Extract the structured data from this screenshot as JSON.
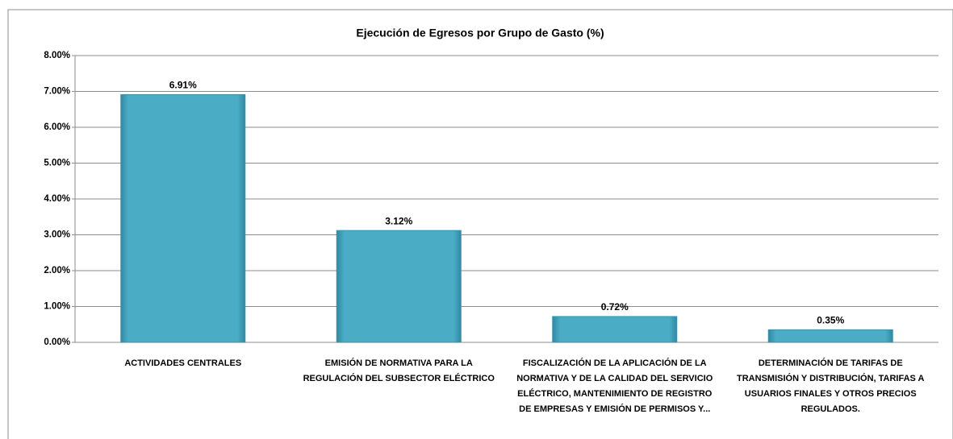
{
  "chart_data": {
    "type": "bar",
    "title": "Ejecución de Egresos por Grupo de Gasto (%)",
    "categories": [
      "ACTIVIDADES CENTRALES",
      "EMISIÓN DE NORMATIVA PARA LA\nREGULACIÓN DEL SUBSECTOR ELÉCTRICO",
      "FISCALIZACIÓN DE LA APLICACIÓN DE LA\nNORMATIVA Y DE LA CALIDAD DEL SERVICIO\nELÉCTRICO, MANTENIMIENTO DE REGISTRO\nDE EMPRESAS Y EMISIÓN DE PERMISOS Y...",
      "DETERMINACIÓN DE TARIFAS DE\nTRANSMISIÓN Y DISTRIBUCIÓN, TARIFAS A\nUSUARIOS FINALES Y OTROS PRECIOS\nREGULADOS."
    ],
    "values": [
      6.91,
      3.12,
      0.72,
      0.35
    ],
    "value_labels": [
      "6.91%",
      "3.12%",
      "0.72%",
      "0.35%"
    ],
    "color": "#4bacc6",
    "ylim": [
      0,
      8
    ],
    "yticks": [
      {
        "value": 0,
        "label": "0.00%"
      },
      {
        "value": 1,
        "label": "1.00%"
      },
      {
        "value": 2,
        "label": "2.00%"
      },
      {
        "value": 3,
        "label": "3.00%"
      },
      {
        "value": 4,
        "label": "4.00%"
      },
      {
        "value": 5,
        "label": "5.00%"
      },
      {
        "value": 6,
        "label": "6.00%"
      },
      {
        "value": 7,
        "label": "7.00%"
      },
      {
        "value": 8,
        "label": "8.00%"
      }
    ],
    "grid": true
  }
}
